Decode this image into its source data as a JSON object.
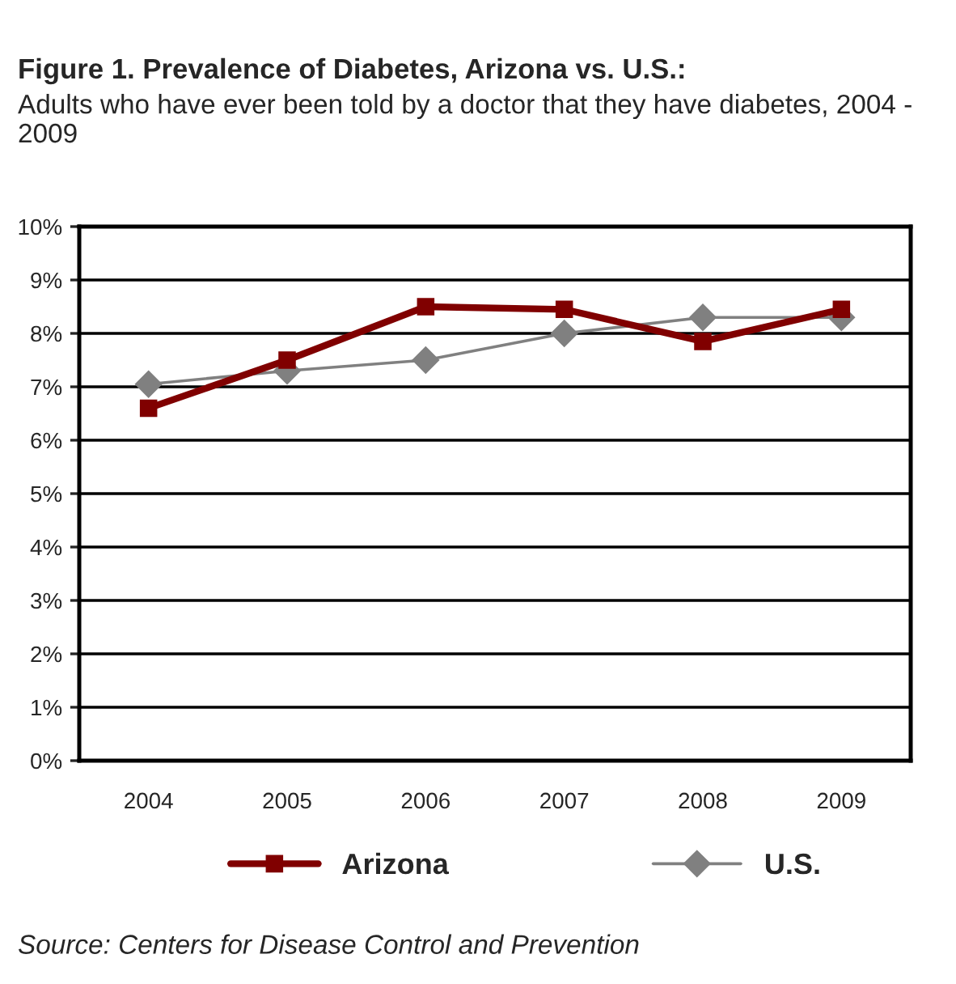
{
  "chart_data": {
    "type": "line",
    "title": "Figure 1. Prevalence of Diabetes, Arizona vs. U.S.:",
    "subtitle": "Adults who have ever been told by a doctor that they have diabetes, 2004 - 2009",
    "categories": [
      "2004",
      "2005",
      "2006",
      "2007",
      "2008",
      "2009"
    ],
    "series": [
      {
        "name": "Arizona",
        "color": "#800000",
        "values": [
          6.6,
          7.5,
          8.5,
          8.45,
          7.85,
          8.45
        ],
        "marker": "square"
      },
      {
        "name": "U.S.",
        "color": "#808080",
        "values": [
          7.05,
          7.3,
          7.5,
          8.0,
          8.3,
          8.3
        ],
        "marker": "diamond"
      }
    ],
    "ylim": [
      0,
      10
    ],
    "yticks": [
      {
        "value": 0,
        "label": "0%"
      },
      {
        "value": 1,
        "label": "1%"
      },
      {
        "value": 2,
        "label": "2%"
      },
      {
        "value": 3,
        "label": "3%"
      },
      {
        "value": 4,
        "label": "4%"
      },
      {
        "value": 5,
        "label": "5%"
      },
      {
        "value": 6,
        "label": "6%"
      },
      {
        "value": 7,
        "label": "7%"
      },
      {
        "value": 8,
        "label": "8%"
      },
      {
        "value": 9,
        "label": "9%"
      },
      {
        "value": 10,
        "label": "10%"
      }
    ],
    "grid": "y",
    "legend": "bottom",
    "annotations": [
      "Source: Centers for Disease Control and Prevention"
    ]
  }
}
